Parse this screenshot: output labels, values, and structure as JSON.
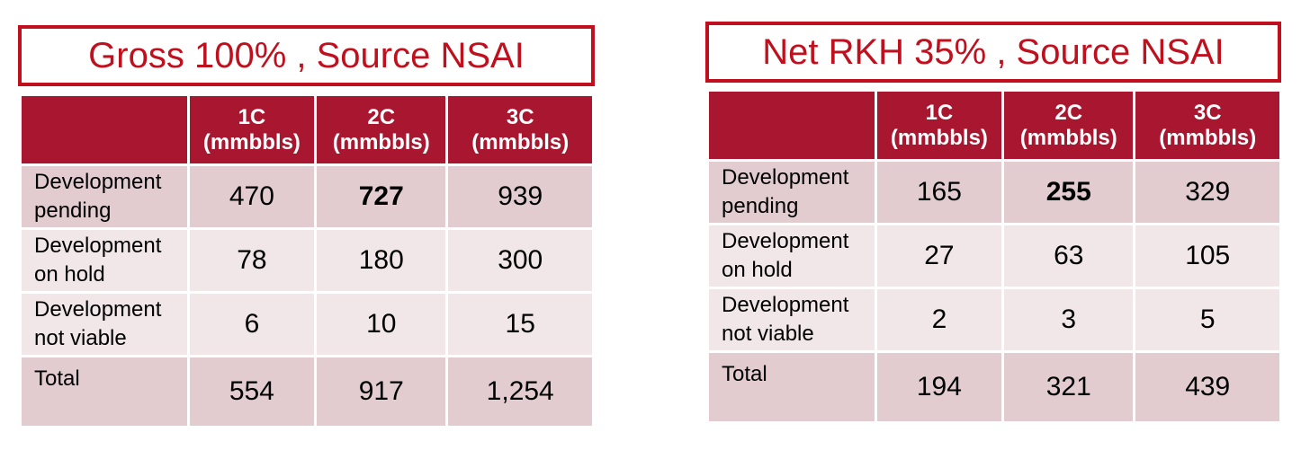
{
  "left": {
    "title": "Gross 100% , Source NSAI",
    "headers": [
      {
        "label": "1C",
        "unit": "(mmbbls)"
      },
      {
        "label": "2C",
        "unit": "(mmbbls)"
      },
      {
        "label": "3C",
        "unit": "(mmbbls)"
      }
    ],
    "rows": [
      {
        "label_line1": "Development",
        "label_line2": "pending",
        "values": [
          "470",
          "727",
          "939"
        ]
      },
      {
        "label_line1": "Development",
        "label_line2": "on hold",
        "values": [
          "78",
          "180",
          "300"
        ]
      },
      {
        "label_line1": "Development",
        "label_line2": "not viable",
        "values": [
          "6",
          "10",
          "15"
        ]
      },
      {
        "label_line1": "Total",
        "label_line2": "",
        "values": [
          "554",
          "917",
          "1,254"
        ]
      }
    ]
  },
  "right": {
    "title": "Net RKH 35% , Source NSAI",
    "headers": [
      {
        "label": "1C",
        "unit": "(mmbbls)"
      },
      {
        "label": "2C",
        "unit": "(mmbbls)"
      },
      {
        "label": "3C",
        "unit": "(mmbbls)"
      }
    ],
    "rows": [
      {
        "label_line1": "Development",
        "label_line2": "pending",
        "values": [
          "165",
          "255",
          "329"
        ]
      },
      {
        "label_line1": "Development",
        "label_line2": "on hold",
        "values": [
          "27",
          "63",
          "105"
        ]
      },
      {
        "label_line1": "Development",
        "label_line2": "not viable",
        "values": [
          "2",
          "3",
          "5"
        ]
      },
      {
        "label_line1": "Total",
        "label_line2": "",
        "values": [
          "194",
          "321",
          "439"
        ]
      }
    ]
  },
  "colors": {
    "title_red": "#c0101e",
    "header_bg": "#a8172f",
    "row_dark": "#e2ccd0",
    "row_light": "#f1e6e8"
  }
}
